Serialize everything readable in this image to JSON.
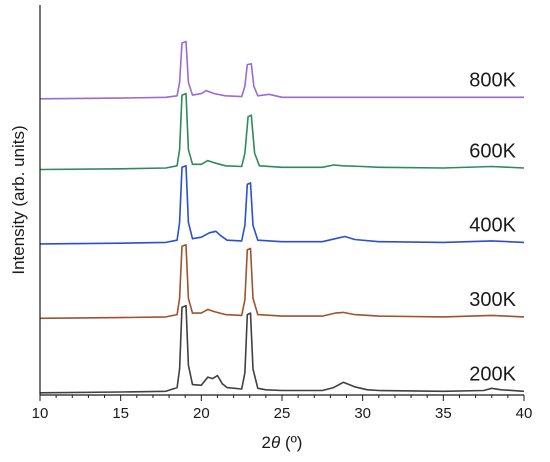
{
  "chart_data": {
    "type": "line",
    "title": "",
    "xlabel": {
      "prefix": "2",
      "theta": "θ",
      "suffix": " (º)"
    },
    "ylabel": "Intensity (arb. units)",
    "xlim": [
      10,
      40
    ],
    "ylim": [
      0,
      5.2
    ],
    "x_ticks": [
      10,
      15,
      20,
      25,
      30,
      35,
      40
    ],
    "y_tick_labels": false,
    "grid": false,
    "legend": "labels at right end of each curve",
    "series": [
      {
        "name": "200K",
        "color": "#404040",
        "offset": 0.0,
        "points": [
          [
            10,
            0.03
          ],
          [
            15,
            0.04
          ],
          [
            17.8,
            0.05
          ],
          [
            18.5,
            0.1
          ],
          [
            18.65,
            0.35
          ],
          [
            18.8,
            1.18
          ],
          [
            19.05,
            1.2
          ],
          [
            19.2,
            0.4
          ],
          [
            19.45,
            0.14
          ],
          [
            20,
            0.13
          ],
          [
            20.4,
            0.24
          ],
          [
            20.7,
            0.22
          ],
          [
            21.0,
            0.26
          ],
          [
            21.3,
            0.15
          ],
          [
            21.6,
            0.1
          ],
          [
            22.5,
            0.08
          ],
          [
            22.7,
            0.3
          ],
          [
            22.85,
            1.08
          ],
          [
            23.05,
            1.1
          ],
          [
            23.2,
            0.35
          ],
          [
            23.5,
            0.09
          ],
          [
            24,
            0.07
          ],
          [
            25,
            0.06
          ],
          [
            27.5,
            0.06
          ],
          [
            28.2,
            0.1
          ],
          [
            28.8,
            0.17
          ],
          [
            29.5,
            0.11
          ],
          [
            30.3,
            0.07
          ],
          [
            31,
            0.06
          ],
          [
            35,
            0.05
          ],
          [
            37.5,
            0.06
          ],
          [
            38,
            0.09
          ],
          [
            38.6,
            0.07
          ],
          [
            40,
            0.05
          ]
        ]
      },
      {
        "name": "300K",
        "color": "#a0522d",
        "offset": 1.0,
        "points": [
          [
            10,
            0.03
          ],
          [
            15,
            0.04
          ],
          [
            17.8,
            0.05
          ],
          [
            18.5,
            0.08
          ],
          [
            18.65,
            0.3
          ],
          [
            18.8,
            1.0
          ],
          [
            19.05,
            1.02
          ],
          [
            19.2,
            0.3
          ],
          [
            19.45,
            0.1
          ],
          [
            20,
            0.1
          ],
          [
            20.4,
            0.15
          ],
          [
            20.8,
            0.12
          ],
          [
            21.5,
            0.08
          ],
          [
            22.5,
            0.07
          ],
          [
            22.7,
            0.28
          ],
          [
            22.85,
            0.95
          ],
          [
            23.05,
            0.97
          ],
          [
            23.2,
            0.3
          ],
          [
            23.5,
            0.08
          ],
          [
            25,
            0.06
          ],
          [
            27.5,
            0.06
          ],
          [
            28.3,
            0.1
          ],
          [
            28.8,
            0.11
          ],
          [
            29.5,
            0.08
          ],
          [
            31,
            0.06
          ],
          [
            35,
            0.05
          ],
          [
            38,
            0.07
          ],
          [
            40,
            0.05
          ]
        ]
      },
      {
        "name": "400K",
        "color": "#2a4fd6",
        "offset": 2.0,
        "points": [
          [
            10,
            0.03
          ],
          [
            15,
            0.04
          ],
          [
            17.8,
            0.05
          ],
          [
            18.5,
            0.08
          ],
          [
            18.65,
            0.32
          ],
          [
            18.8,
            1.06
          ],
          [
            19.05,
            1.08
          ],
          [
            19.2,
            0.32
          ],
          [
            19.45,
            0.1
          ],
          [
            20,
            0.12
          ],
          [
            20.5,
            0.18
          ],
          [
            20.9,
            0.2
          ],
          [
            21.2,
            0.14
          ],
          [
            21.6,
            0.08
          ],
          [
            22.5,
            0.07
          ],
          [
            22.7,
            0.28
          ],
          [
            22.85,
            0.83
          ],
          [
            23.05,
            0.85
          ],
          [
            23.2,
            0.28
          ],
          [
            23.5,
            0.08
          ],
          [
            25,
            0.06
          ],
          [
            27.5,
            0.06
          ],
          [
            28.3,
            0.1
          ],
          [
            28.9,
            0.13
          ],
          [
            29.5,
            0.09
          ],
          [
            31,
            0.06
          ],
          [
            35,
            0.05
          ],
          [
            38,
            0.07
          ],
          [
            40,
            0.05
          ]
        ]
      },
      {
        "name": "600K",
        "color": "#2e8b57",
        "offset": 3.0,
        "points": [
          [
            10,
            0.03
          ],
          [
            15,
            0.04
          ],
          [
            17.8,
            0.05
          ],
          [
            18.5,
            0.08
          ],
          [
            18.65,
            0.3
          ],
          [
            18.8,
            1.03
          ],
          [
            19.05,
            1.05
          ],
          [
            19.2,
            0.3
          ],
          [
            19.45,
            0.1
          ],
          [
            20,
            0.1
          ],
          [
            20.4,
            0.15
          ],
          [
            20.8,
            0.12
          ],
          [
            21.5,
            0.08
          ],
          [
            22.5,
            0.07
          ],
          [
            22.7,
            0.25
          ],
          [
            22.9,
            0.74
          ],
          [
            23.1,
            0.76
          ],
          [
            23.3,
            0.25
          ],
          [
            23.6,
            0.08
          ],
          [
            25,
            0.06
          ],
          [
            27.5,
            0.06
          ],
          [
            28.2,
            0.09
          ],
          [
            28.8,
            0.08
          ],
          [
            30,
            0.07
          ],
          [
            31,
            0.06
          ],
          [
            35,
            0.05
          ],
          [
            38,
            0.07
          ],
          [
            40,
            0.05
          ]
        ]
      },
      {
        "name": "800K",
        "color": "#9a6ad6",
        "offset": 3.95,
        "points": [
          [
            10,
            0.03
          ],
          [
            15,
            0.04
          ],
          [
            17.8,
            0.05
          ],
          [
            18.5,
            0.07
          ],
          [
            18.65,
            0.25
          ],
          [
            18.8,
            0.78
          ],
          [
            19.05,
            0.8
          ],
          [
            19.2,
            0.25
          ],
          [
            19.45,
            0.08
          ],
          [
            20,
            0.1
          ],
          [
            20.3,
            0.14
          ],
          [
            20.8,
            0.1
          ],
          [
            21.5,
            0.07
          ],
          [
            22.5,
            0.06
          ],
          [
            22.7,
            0.2
          ],
          [
            22.85,
            0.49
          ],
          [
            23.1,
            0.5
          ],
          [
            23.25,
            0.2
          ],
          [
            23.5,
            0.07
          ],
          [
            24.2,
            0.09
          ],
          [
            25,
            0.05
          ],
          [
            30,
            0.05
          ],
          [
            35,
            0.05
          ],
          [
            40,
            0.05
          ]
        ]
      }
    ]
  }
}
